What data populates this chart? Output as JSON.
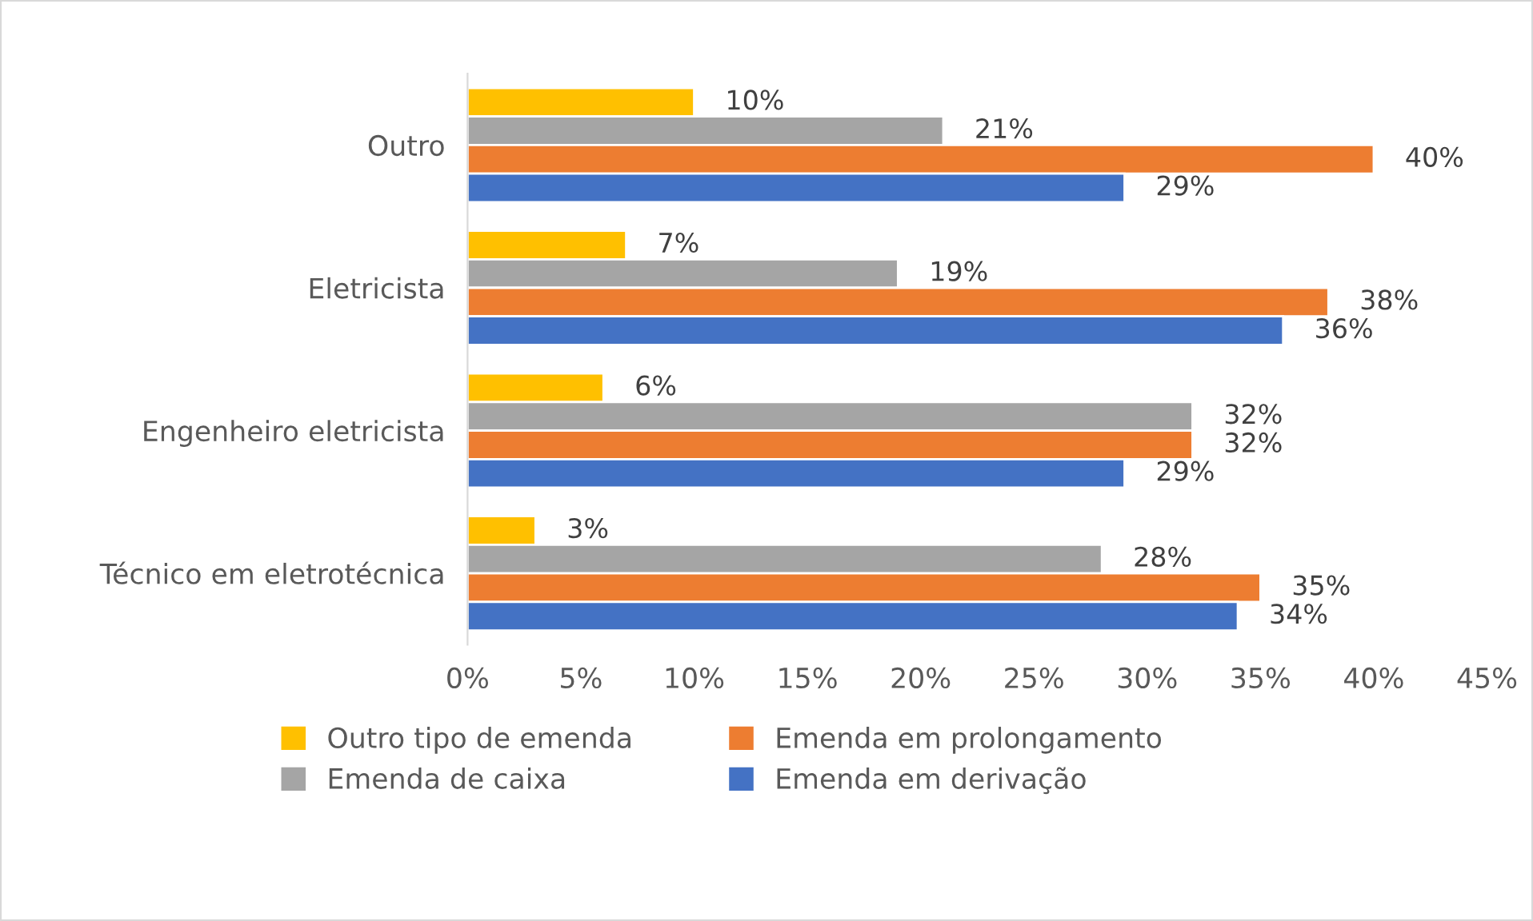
{
  "chart_data": {
    "type": "bar",
    "orientation": "horizontal",
    "categories": [
      "Outro",
      "Eletricista",
      "Engenheiro eletricista",
      "Técnico em eletrotécnica"
    ],
    "series": [
      {
        "name": "Outro tipo de emenda",
        "color": "#ffc000",
        "values": [
          10,
          7,
          6,
          3
        ],
        "value_labels": [
          "10%",
          "7%",
          "6%",
          "3%"
        ]
      },
      {
        "name": "Emenda de caixa",
        "color": "#a5a5a5",
        "values": [
          21,
          19,
          32,
          28
        ],
        "value_labels": [
          "21%",
          "19%",
          "32%",
          "28%"
        ]
      },
      {
        "name": "Emenda em prolongamento",
        "color": "#ed7d31",
        "values": [
          40,
          38,
          32,
          35
        ],
        "value_labels": [
          "40%",
          "38%",
          "32%",
          "35%"
        ]
      },
      {
        "name": "Emenda em derivação",
        "color": "#4472c4",
        "values": [
          29,
          36,
          29,
          34
        ],
        "value_labels": [
          "29%",
          "36%",
          "29%",
          "34%"
        ]
      }
    ],
    "xlim": [
      0,
      45
    ],
    "xticks": [
      {
        "value": 0,
        "label": "0%"
      },
      {
        "value": 5,
        "label": "5%"
      },
      {
        "value": 10,
        "label": "10%"
      },
      {
        "value": 15,
        "label": "15%"
      },
      {
        "value": 20,
        "label": "20%"
      },
      {
        "value": 25,
        "label": "25%"
      },
      {
        "value": 30,
        "label": "30%"
      },
      {
        "value": 35,
        "label": "35%"
      },
      {
        "value": 40,
        "label": "40%"
      },
      {
        "value": 45,
        "label": "45%"
      }
    ],
    "legend": "bottom",
    "grid": false
  }
}
